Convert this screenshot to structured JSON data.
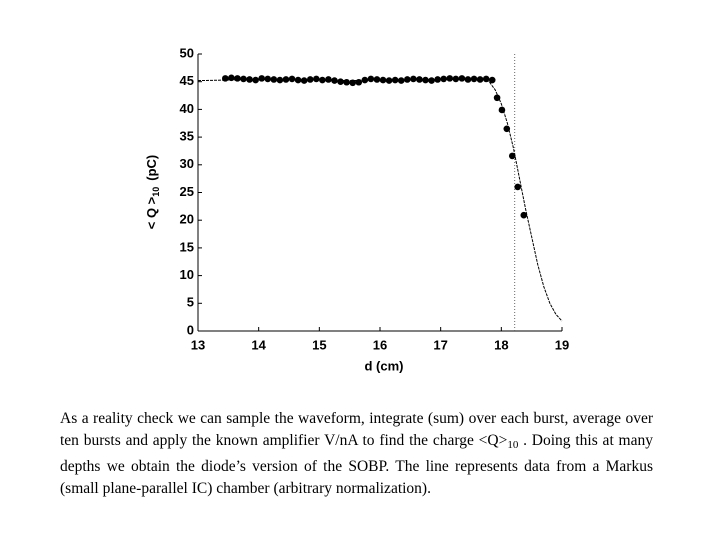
{
  "chart_data": {
    "type": "scatter",
    "x_label": "d  (cm)",
    "y_label": {
      "main": "< Q >",
      "sub": "10",
      "unit": "(pC)"
    },
    "xlim": [
      13,
      19
    ],
    "xticks": [
      13,
      14,
      15,
      16,
      17,
      18,
      19
    ],
    "ylim": [
      0,
      50
    ],
    "yticks": [
      0,
      5,
      10,
      15,
      20,
      25,
      30,
      35,
      40,
      45,
      50
    ],
    "grid": false,
    "points": {
      "color": "#000000",
      "x": [
        13.45,
        13.55,
        13.65,
        13.75,
        13.85,
        13.95,
        14.05,
        14.15,
        14.25,
        14.35,
        14.45,
        14.55,
        14.65,
        14.75,
        14.85,
        14.95,
        15.05,
        15.15,
        15.25,
        15.35,
        15.45,
        15.55,
        15.65,
        15.75,
        15.85,
        15.95,
        16.05,
        16.15,
        16.25,
        16.35,
        16.45,
        16.55,
        16.65,
        16.75,
        16.85,
        16.95,
        17.05,
        17.15,
        17.25,
        17.35,
        17.45,
        17.55,
        17.65,
        17.75,
        17.85,
        17.93,
        18.01,
        18.09,
        18.18,
        18.27,
        18.37
      ],
      "y": [
        45.6,
        45.7,
        45.6,
        45.5,
        45.4,
        45.3,
        45.6,
        45.5,
        45.4,
        45.3,
        45.4,
        45.5,
        45.3,
        45.2,
        45.4,
        45.5,
        45.3,
        45.4,
        45.2,
        45.0,
        44.9,
        44.8,
        44.9,
        45.3,
        45.5,
        45.4,
        45.3,
        45.2,
        45.3,
        45.2,
        45.4,
        45.5,
        45.4,
        45.3,
        45.2,
        45.4,
        45.5,
        45.6,
        45.5,
        45.6,
        45.4,
        45.5,
        45.4,
        45.5,
        45.3,
        42.1,
        39.9,
        36.5,
        31.6,
        26.0,
        20.9
      ]
    },
    "curve": {
      "color": "#000000",
      "x": [
        13,
        13.5,
        14,
        14.5,
        15,
        15.5,
        16,
        16.5,
        17,
        17.5,
        17.7,
        17.8,
        17.9,
        18.0,
        18.1,
        18.2,
        18.3,
        18.4,
        18.5,
        18.6,
        18.7,
        18.8,
        18.9,
        19.0
      ],
      "y": [
        45.2,
        45.3,
        45.4,
        45.3,
        45.3,
        45.2,
        45.3,
        45.3,
        45.4,
        45.4,
        45.4,
        45.0,
        43.5,
        41.0,
        37.5,
        33.0,
        27.5,
        22.0,
        17.0,
        12.0,
        8.0,
        5.0,
        3.0,
        1.8
      ]
    },
    "vline": 18.22
  },
  "caption": {
    "before": "As a reality check we can sample the waveform, integrate (sum) over each burst, average over ten bursts and apply the known amplifier V/nA to find the charge <Q>",
    "sub": "10",
    "after": " . Doing this at many depths we obtain the diode’s version of the SOBP. The line represents data from a Markus (small plane-parallel IC) chamber (arbitrary normalization)."
  }
}
